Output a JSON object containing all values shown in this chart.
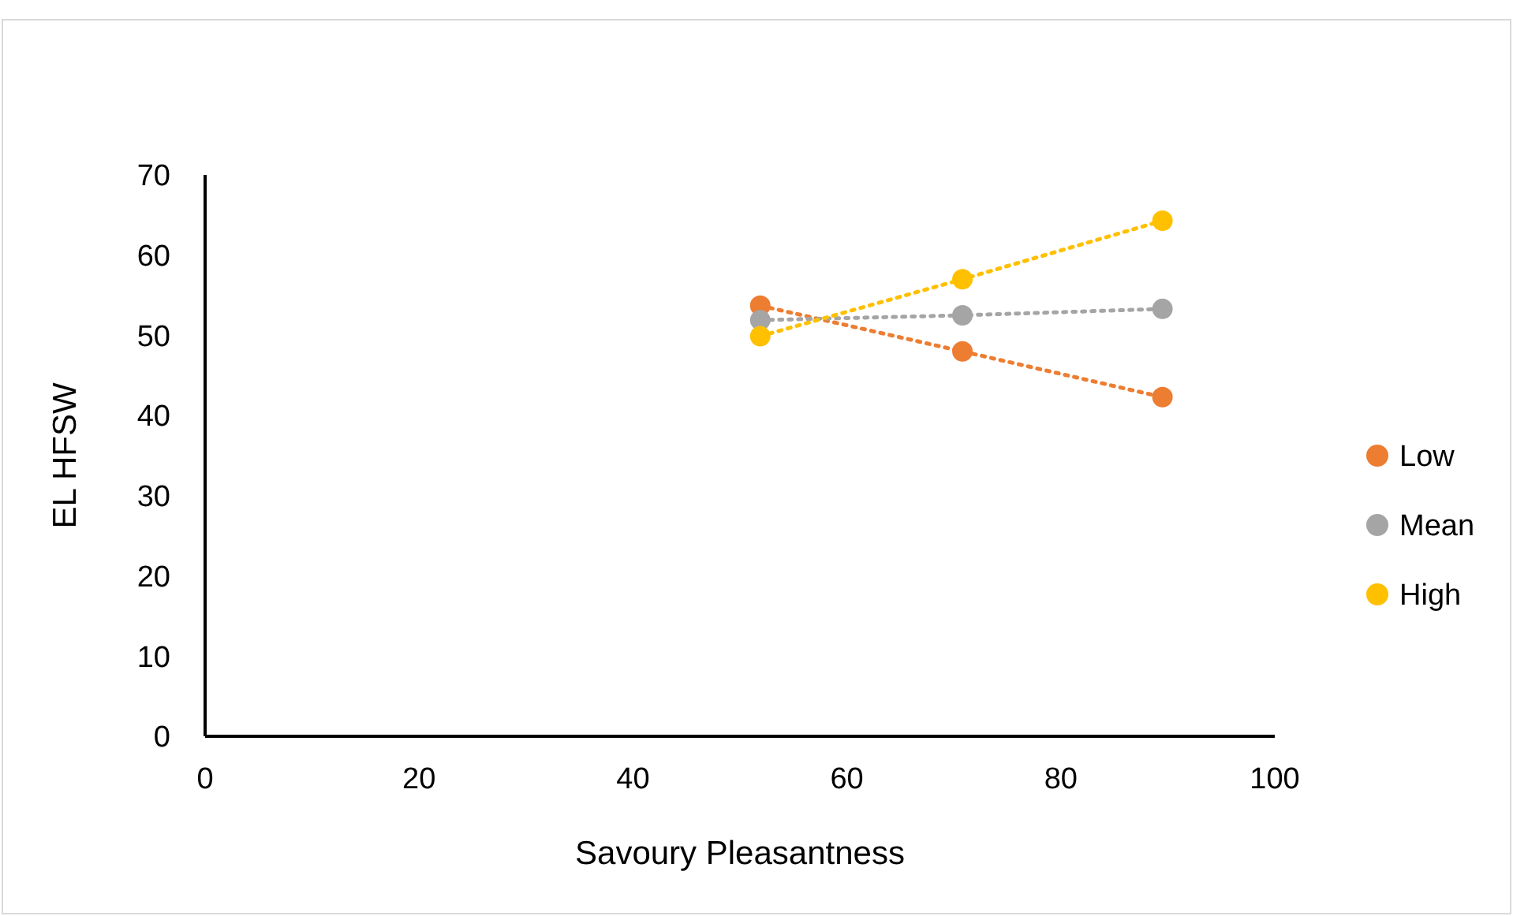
{
  "chart_data": {
    "type": "line",
    "xlabel": "Savoury Pleasantness",
    "ylabel": "EL HFSW",
    "xlim": [
      0,
      100
    ],
    "xticks": [
      0,
      20,
      40,
      60,
      80,
      100
    ],
    "ylim": [
      0,
      70
    ],
    "yticks": [
      0,
      10,
      20,
      30,
      40,
      50,
      60,
      70
    ],
    "grid": false,
    "legend": "right",
    "marker": "circle",
    "line_style": "dotted",
    "series": [
      {
        "name": "Low",
        "color": "#ed7d31",
        "x": [
          51.9,
          70.8,
          89.5
        ],
        "values": [
          53.7,
          48.0,
          42.3
        ]
      },
      {
        "name": "Mean",
        "color": "#a5a5a5",
        "x": [
          51.9,
          70.8,
          89.5
        ],
        "values": [
          51.9,
          52.5,
          53.3
        ]
      },
      {
        "name": "High",
        "color": "#ffc000",
        "x": [
          51.9,
          70.8,
          89.5
        ],
        "values": [
          49.9,
          57.0,
          64.3
        ]
      }
    ]
  }
}
